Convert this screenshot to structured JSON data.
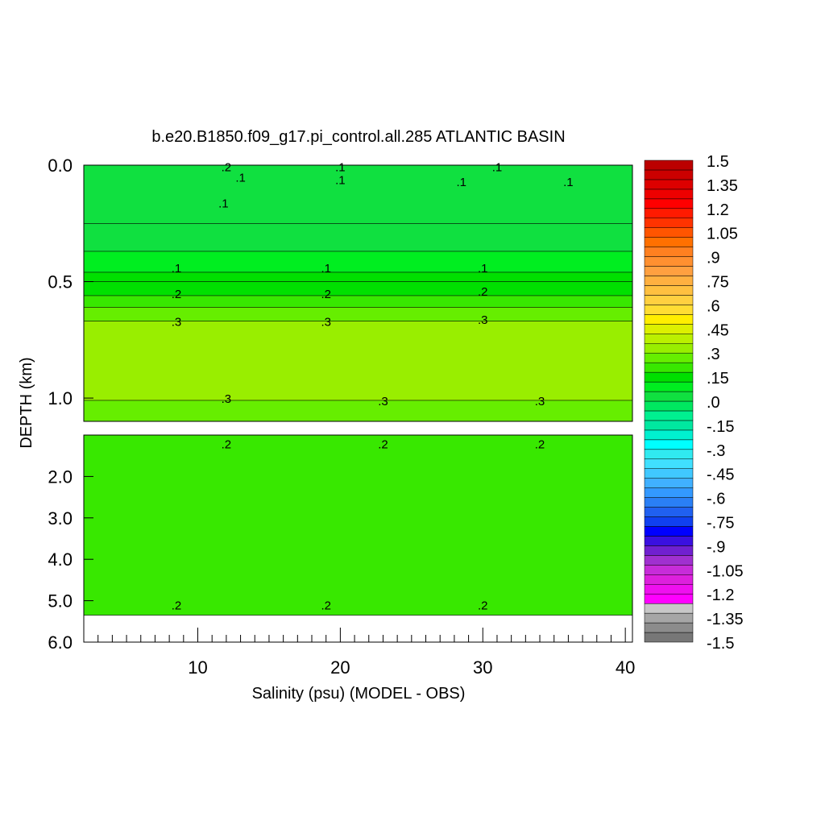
{
  "chart_data": {
    "type": "heatmap",
    "title": "b.e20.B1850.f09_g17.pi_control.all.285 ATLANTIC BASIN",
    "xlabel": "Salinity (psu) (MODEL - OBS)",
    "ylabel": "DEPTH (km)",
    "xlim": [
      2,
      40.5
    ],
    "x_ticks": [
      "10",
      "20",
      "30",
      "40"
    ],
    "upper_panel": {
      "ylim": [
        0.0,
        1.1
      ],
      "y_ticks": [
        "0.0",
        "0.5",
        "1.0"
      ],
      "bands": [
        {
          "from": 0.0,
          "to": 0.25,
          "value": 0.05
        },
        {
          "from": 0.25,
          "to": 0.37,
          "value": 0.02
        },
        {
          "from": 0.37,
          "to": 0.46,
          "value": 0.07
        },
        {
          "from": 0.46,
          "to": 0.5,
          "value": 0.12
        },
        {
          "from": 0.5,
          "to": 0.56,
          "value": 0.17
        },
        {
          "from": 0.56,
          "to": 0.61,
          "value": 0.22
        },
        {
          "from": 0.61,
          "to": 0.67,
          "value": 0.27
        },
        {
          "from": 0.67,
          "to": 1.01,
          "value": 0.32
        },
        {
          "from": 1.01,
          "to": 1.1,
          "value": 0.28
        }
      ],
      "contour_labels": [
        {
          "text": ".2",
          "x": 12,
          "y": 0.005
        },
        {
          "text": ".1",
          "x": 20,
          "y": 0.005
        },
        {
          "text": ".1",
          "x": 31,
          "y": 0.005
        },
        {
          "text": ".1",
          "x": 13,
          "y": 0.05
        },
        {
          "text": ".1",
          "x": 20,
          "y": 0.06
        },
        {
          "text": ".1",
          "x": 28.5,
          "y": 0.07
        },
        {
          "text": ".1",
          "x": 36,
          "y": 0.07
        },
        {
          "text": ".1",
          "x": 11.8,
          "y": 0.16
        },
        {
          "text": ".1",
          "x": 8.5,
          "y": 0.44
        },
        {
          "text": ".1",
          "x": 19,
          "y": 0.44
        },
        {
          "text": ".1",
          "x": 30,
          "y": 0.44
        },
        {
          "text": ".2",
          "x": 8.5,
          "y": 0.55
        },
        {
          "text": ".2",
          "x": 19,
          "y": 0.55
        },
        {
          "text": ".2",
          "x": 30,
          "y": 0.54
        },
        {
          "text": ".3",
          "x": 8.5,
          "y": 0.67
        },
        {
          "text": ".3",
          "x": 19,
          "y": 0.67
        },
        {
          "text": ".3",
          "x": 30,
          "y": 0.66
        },
        {
          "text": ".3",
          "x": 12,
          "y": 1.0
        },
        {
          "text": ".3",
          "x": 23,
          "y": 1.01
        },
        {
          "text": ".3",
          "x": 34,
          "y": 1.01
        }
      ]
    },
    "lower_panel": {
      "ylim": [
        1.0,
        6.0
      ],
      "y_ticks": [
        "2.0",
        "3.0",
        "4.0",
        "5.0",
        "6.0"
      ],
      "data_bottom": 5.35,
      "bands": [
        {
          "from": 1.0,
          "to": 5.35,
          "value": 0.2
        }
      ],
      "contour_labels": [
        {
          "text": ".2",
          "x": 12,
          "y": 1.2
        },
        {
          "text": ".2",
          "x": 23,
          "y": 1.2
        },
        {
          "text": ".2",
          "x": 34,
          "y": 1.2
        },
        {
          "text": ".2",
          "x": 8.5,
          "y": 5.1
        },
        {
          "text": ".2",
          "x": 19,
          "y": 5.1
        },
        {
          "text": ".2",
          "x": 30,
          "y": 5.1
        }
      ]
    },
    "colorbar": {
      "min": -1.5,
      "max": 1.5,
      "labels": [
        "1.5",
        "1.35",
        "1.2",
        "1.05",
        ".9",
        ".75",
        ".6",
        ".45",
        ".3",
        ".15",
        ".0",
        "-.15",
        "-.3",
        "-.45",
        "-.6",
        "-.75",
        "-.9",
        "-1.05",
        "-1.2",
        "-1.35",
        "-1.5"
      ],
      "colors": [
        "#777777",
        "#8c8c8c",
        "#a6a6a6",
        "#c8c8c8",
        "#ff00ff",
        "#ef10ef",
        "#dd20dd",
        "#c72cd9",
        "#a030d0",
        "#7020d0",
        "#3a10e0",
        "#0000ff",
        "#1040f0",
        "#2060f0",
        "#2a7ff5",
        "#3399ff",
        "#40b0ff",
        "#40c8ff",
        "#40e0ff",
        "#30eaf0",
        "#00ffff",
        "#00f0d0",
        "#00e8a0",
        "#00f090",
        "#00e860",
        "#10e040",
        "#00ee20",
        "#00e000",
        "#38e800",
        "#66ee00",
        "#99ee00",
        "#bbf000",
        "#ddf000",
        "#ffee00",
        "#ffdd33",
        "#ffd040",
        "#ffc040",
        "#ffb040",
        "#ffa040",
        "#ff9030",
        "#ff8020",
        "#ff7000",
        "#ff5500",
        "#ff3300",
        "#ff1a00",
        "#ff0000",
        "#ee0000",
        "#dd0000",
        "#cc0000",
        "#bb0000"
      ]
    }
  }
}
